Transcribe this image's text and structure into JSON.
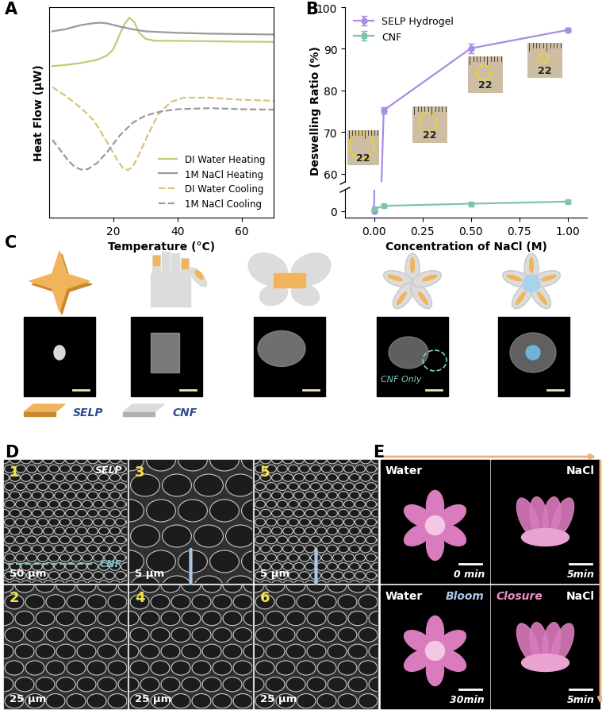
{
  "chart_data": [
    {
      "type": "line",
      "xlabel": "Temperature (°C)",
      "ylabel": "Heat Flow (µW)",
      "xlim": [
        0,
        70
      ],
      "xticks": [
        20,
        40,
        60
      ],
      "ylim": [
        0,
        100
      ],
      "tick_labels": "x",
      "legend": "lower right",
      "series": [
        {
          "name": "DI Water Heating",
          "color": "#b8cf72",
          "line_style": "solid",
          "x": [
            1,
            5,
            10,
            15,
            18,
            20,
            22,
            23.5,
            25,
            26.5,
            28,
            30,
            33,
            40,
            50,
            60,
            70
          ],
          "values": [
            72,
            72.5,
            73.5,
            75,
            77,
            80,
            87,
            92,
            95,
            93,
            88,
            85,
            84,
            84,
            83.8,
            83.6,
            83.5
          ]
        },
        {
          "name": "1M NaCl Heating",
          "color": "#9a9a9a",
          "line_style": "solid",
          "x": [
            1,
            5,
            10,
            14,
            16,
            18,
            22,
            26,
            30,
            40,
            50,
            60,
            70
          ],
          "values": [
            88.5,
            89.5,
            91.5,
            92.4,
            92.6,
            92.3,
            90.8,
            89.5,
            88.5,
            87.8,
            87.4,
            87.2,
            87
          ]
        },
        {
          "name": "DI Water Cooling",
          "color": "#d9c47a",
          "line_style": "dashed",
          "x": [
            1,
            5,
            10,
            14,
            18,
            21,
            23,
            24.5,
            26,
            28,
            31,
            34,
            38,
            42,
            50,
            60,
            70
          ],
          "values": [
            62,
            58,
            52,
            46,
            36,
            28,
            23.5,
            22.6,
            24,
            30,
            40,
            49,
            55,
            57,
            57,
            56,
            55.5
          ]
        },
        {
          "name": "1M NaCl Cooling",
          "color": "#9a9a9a",
          "line_style": "dashed",
          "x": [
            1,
            3,
            6,
            8,
            10,
            12,
            15,
            18,
            22,
            26,
            30,
            35,
            40,
            50,
            60,
            70
          ],
          "values": [
            37,
            33,
            27,
            24,
            22.8,
            23,
            26,
            31,
            39,
            45,
            48.5,
            50.5,
            51.5,
            52,
            51.5,
            51.3
          ]
        }
      ]
    },
    {
      "type": "line",
      "xlabel": "Concentration of NaCl (M)",
      "ylabel": "Deswelling Ratio (%)",
      "xlim": [
        -0.15,
        1.1
      ],
      "xticks": [
        {
          "value": 0,
          "label": "0.00"
        },
        {
          "value": 0.25,
          "label": "0.25"
        },
        {
          "value": 0.5,
          "label": "0.50"
        },
        {
          "value": 0.75,
          "label": "0.75"
        },
        {
          "value": 1,
          "label": "1.00"
        }
      ],
      "ylim": [
        -0.6,
        100
      ],
      "y_break": [
        2,
        58
      ],
      "yticks": [
        0,
        60,
        70,
        80,
        90,
        100
      ],
      "legend": "upper left",
      "series": [
        {
          "name": "SELP Hydrogel",
          "color": "#a98de0",
          "marker": "circle",
          "x": [
            0,
            0.05,
            0.5,
            1.0
          ],
          "values": [
            0,
            75.2,
            90.1,
            94.5
          ],
          "errors": [
            0,
            0.8,
            1.2,
            0.5
          ]
        },
        {
          "name": "CNF",
          "color": "#7fc4a8",
          "marker": "square",
          "x": [
            0,
            0.05,
            0.5,
            1.0
          ],
          "values": [
            0.2,
            0.5,
            0.7,
            0.9
          ],
          "errors": [
            0,
            0.1,
            0.1,
            0.1
          ]
        }
      ]
    }
  ],
  "panel_labels": [
    "A",
    "B",
    "C",
    "D",
    "E"
  ],
  "inset_texts": [
    "22",
    "22",
    "22",
    "22"
  ],
  "panel_C": {
    "materials": [
      "SELP",
      "CNF"
    ],
    "annotation": "CNF Only"
  },
  "panel_D": {
    "tiles": [
      {
        "number": "1",
        "scale": "50 µm",
        "labels": [
          "SELP",
          "CNF"
        ]
      },
      {
        "number": "2",
        "scale": "25 µm"
      },
      {
        "number": "3",
        "scale": "5 µm"
      },
      {
        "number": "4",
        "scale": "25 µm"
      },
      {
        "number": "5",
        "scale": "5 µm"
      },
      {
        "number": "6",
        "scale": "25 µm"
      }
    ]
  },
  "panel_E": {
    "tiles": [
      {
        "medium": "Water",
        "time": "0 min"
      },
      {
        "medium": "NaCl",
        "time": "5min"
      },
      {
        "medium": "Water",
        "time": "30min",
        "state": "Bloom"
      },
      {
        "medium": "NaCl",
        "time": "5min",
        "state": "Closure"
      }
    ]
  }
}
